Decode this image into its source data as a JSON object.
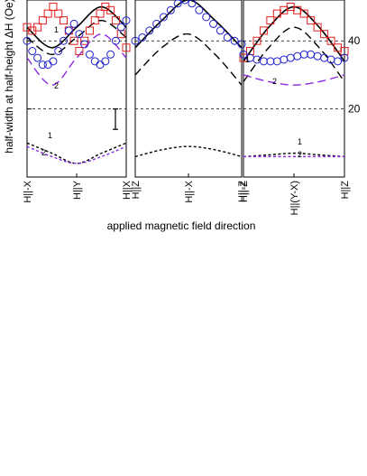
{
  "chart_data": {
    "type": "line",
    "ylabel": "half-width at half-height ΔH (Oe)",
    "xlabel": "applied magnetic field direction",
    "ylim": [
      0,
      52
    ],
    "yticks": [
      20,
      40
    ],
    "grid_lines": [
      20,
      40
    ],
    "error_bar": {
      "low": 14,
      "high": 20
    },
    "panels": [
      {
        "categories": [
          "H||-X",
          "H||Y",
          "H||X"
        ],
        "x": [
          0,
          0.25,
          0.5,
          0.75,
          1.0
        ],
        "series": [
          {
            "style": "solid",
            "color": "#000000",
            "values": [
              44,
              38,
              44,
              50,
              44
            ]
          },
          {
            "style": "dashed-long",
            "label": "1",
            "color": "#000000",
            "values": [
              41,
              36,
              41,
              46,
              41
            ]
          },
          {
            "style": "dashed-long",
            "label": "2",
            "color": "#8a2be2",
            "values": [
              35,
              27,
              35,
              42,
              35
            ]
          },
          {
            "style": "dashed-short",
            "label": "1",
            "color": "#000000",
            "values": [
              10,
              7,
              4,
              7,
              10
            ]
          },
          {
            "style": "dashed-short",
            "label": "2",
            "color": "#8a2be2",
            "values": [
              9,
              6,
              4,
              6,
              9
            ]
          }
        ],
        "markers": [
          {
            "shape": "square",
            "color": "#e02020",
            "y": [
              44,
              43,
              44,
              46,
              48,
              50,
              48,
              46,
              43,
              40,
              37,
              40,
              43,
              46,
              48,
              50,
              49,
              46,
              42,
              38
            ]
          },
          {
            "shape": "circle",
            "color": "#2020d0",
            "y": [
              40,
              37,
              35,
              33,
              33,
              34,
              37,
              40,
              43,
              45,
              42,
              39,
              36,
              34,
              33,
              34,
              36,
              40,
              44,
              46
            ]
          }
        ]
      },
      {
        "categories": [
          "H||Z",
          "H||-X",
          "H||-Z"
        ],
        "x": [
          0,
          0.25,
          0.5,
          0.75,
          1.0
        ],
        "series": [
          {
            "style": "solid",
            "color": "#000000",
            "values": [
              38,
              46,
              52,
              46,
              38
            ]
          },
          {
            "style": "dashed-long",
            "color": "#000000",
            "values": [
              30,
              38,
              42,
              36,
              27
            ]
          },
          {
            "style": "dashed-short",
            "color": "#000000",
            "values": [
              6,
              8,
              9,
              8,
              6
            ]
          }
        ],
        "markers": [
          {
            "shape": "circle",
            "color": "#2020d0",
            "y": [
              40,
              41,
              43,
              45,
              47,
              49,
              51,
              52,
              51,
              49,
              47,
              45,
              43,
              41,
              40,
              39
            ]
          }
        ]
      },
      {
        "categories": [
          "H||-Z",
          "H||(Y-X)",
          "H||Z"
        ],
        "x": [
          0,
          0.25,
          0.5,
          0.75,
          1.0
        ],
        "series": [
          {
            "style": "solid",
            "color": "#000000",
            "values": [
              34,
              44,
              50,
              44,
              34
            ]
          },
          {
            "style": "dashed-long",
            "label": "1",
            "color": "#000000",
            "values": [
              28,
              38,
              44,
              38,
              28
            ]
          },
          {
            "style": "dashed-long",
            "label": "2",
            "color": "#8a2be2",
            "values": [
              30,
              28,
              27,
              28,
              30
            ]
          },
          {
            "style": "dashed-short",
            "label": "1",
            "color": "#000000",
            "values": [
              6,
              6.5,
              7,
              6.5,
              6
            ]
          },
          {
            "style": "dashed-short",
            "label": "2",
            "color": "#8a2be2",
            "values": [
              6,
              6,
              6,
              6,
              6
            ]
          }
        ],
        "markers": [
          {
            "shape": "square",
            "color": "#e02020",
            "y": [
              35,
              37,
              40,
              43,
              46,
              48,
              49,
              50,
              49,
              48,
              46,
              44,
              42,
              40,
              38,
              37
            ]
          },
          {
            "shape": "circle",
            "color": "#2020d0",
            "y": [
              36,
              35,
              34.5,
              34,
              34,
              34,
              34.5,
              35,
              35.5,
              36,
              36,
              35.5,
              35,
              34.5,
              34,
              35
            ]
          }
        ]
      }
    ],
    "curve_labels": [
      "1",
      "2",
      "1",
      "2",
      "1",
      "2"
    ]
  }
}
